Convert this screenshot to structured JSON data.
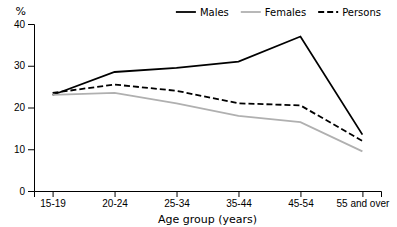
{
  "chart_data": {
    "type": "line",
    "categories": [
      "15-19",
      "20-24",
      "25-34",
      "35-44",
      "45-54",
      "55 and over"
    ],
    "series": [
      {
        "name": "Males",
        "color": "#000000",
        "line_style": "solid",
        "values": [
          23.0,
          28.5,
          29.5,
          31.0,
          37.0,
          13.5
        ]
      },
      {
        "name": "Females",
        "color": "#b0b0b0",
        "line_style": "solid",
        "values": [
          23.0,
          23.5,
          21.0,
          18.0,
          16.5,
          9.5
        ]
      },
      {
        "name": "Persons",
        "color": "#000000",
        "line_style": "dashed",
        "values": [
          23.5,
          25.5,
          24.0,
          21.0,
          20.5,
          12.0
        ]
      }
    ],
    "xlabel": "Age group (years)",
    "ylabel": "%",
    "ylim": [
      0,
      40
    ],
    "yticks": [
      0,
      10,
      20,
      30,
      40
    ],
    "legend": "upper right"
  }
}
